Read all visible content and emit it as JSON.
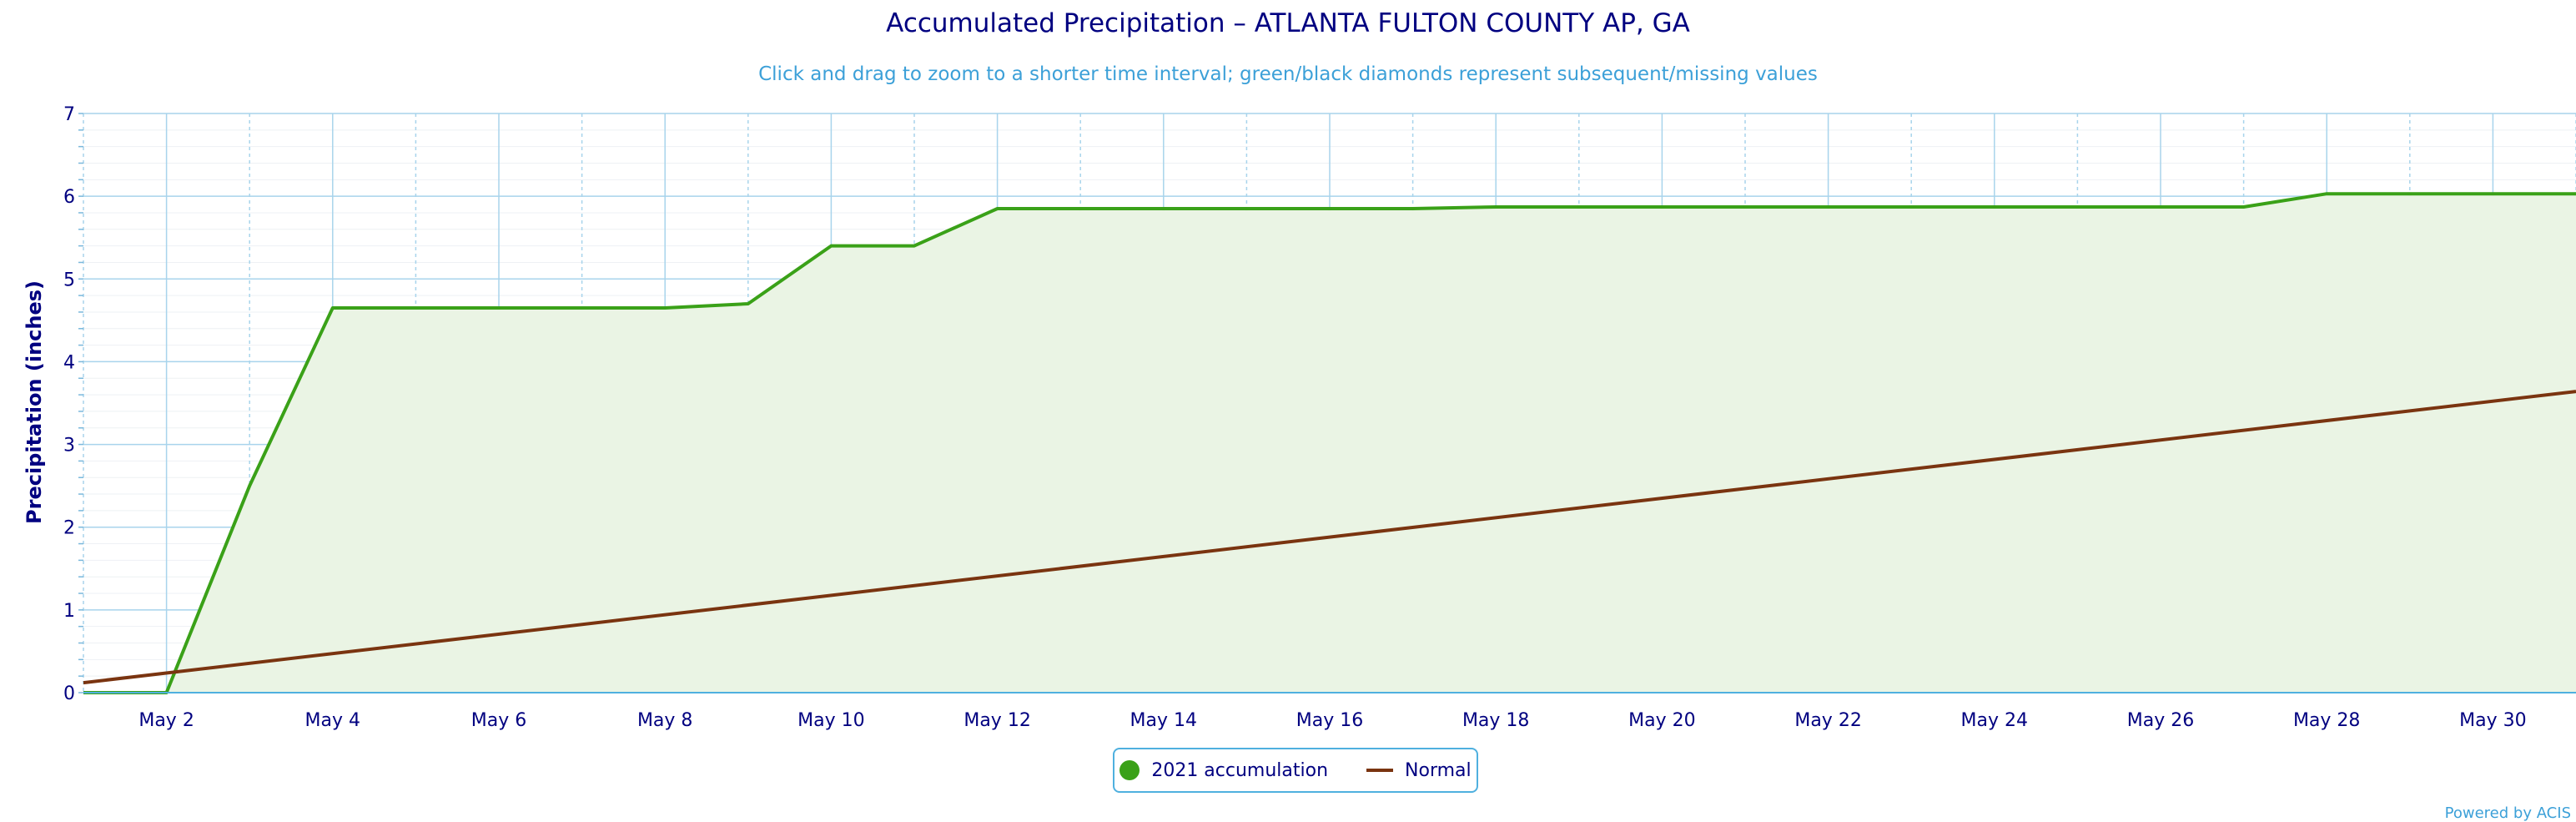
{
  "chart_data": {
    "type": "area",
    "title": "Accumulated Precipitation – ATLANTA FULTON COUNTY AP, GA",
    "subtitle": "Click and drag to zoom to a shorter time interval; green/black diamonds represent subsequent/missing values",
    "ylabel": "Precipitation (inches)",
    "xlabel": "",
    "x_range": [
      1,
      31
    ],
    "ylim": [
      0,
      7
    ],
    "y_ticks": [
      0,
      1,
      2,
      3,
      4,
      5,
      6,
      7
    ],
    "x_tick_days": [
      2,
      4,
      6,
      8,
      10,
      12,
      14,
      16,
      18,
      20,
      22,
      24,
      26,
      28,
      30
    ],
    "x_tick_labels": [
      "May 2",
      "May 4",
      "May 6",
      "May 8",
      "May 10",
      "May 12",
      "May 14",
      "May 16",
      "May 18",
      "May 20",
      "May 22",
      "May 24",
      "May 26",
      "May 28",
      "May 30"
    ],
    "grid": true,
    "legend_position": "bottom-center",
    "series": [
      {
        "name": "2021 accumulation",
        "style": "area",
        "color": "#3aa118",
        "fill": "#eaf4e4",
        "x": [
          1,
          2,
          3,
          4,
          5,
          6,
          7,
          8,
          9,
          10,
          11,
          12,
          13,
          14,
          15,
          16,
          17,
          18,
          19,
          20,
          21,
          22,
          23,
          24,
          25,
          26,
          27,
          28,
          29,
          30,
          31
        ],
        "values": [
          0.0,
          0.0,
          2.5,
          4.65,
          4.65,
          4.65,
          4.65,
          4.65,
          4.7,
          5.4,
          5.4,
          5.85,
          5.85,
          5.85,
          5.85,
          5.85,
          5.85,
          5.87,
          5.87,
          5.87,
          5.87,
          5.87,
          5.87,
          5.87,
          5.87,
          5.87,
          5.87,
          6.03,
          6.03,
          6.03,
          6.03
        ]
      },
      {
        "name": "Normal",
        "style": "line",
        "color": "#7a3410",
        "x": [
          1,
          31
        ],
        "values": [
          0.12,
          3.64
        ]
      }
    ]
  },
  "credits": "Powered by ACIS"
}
